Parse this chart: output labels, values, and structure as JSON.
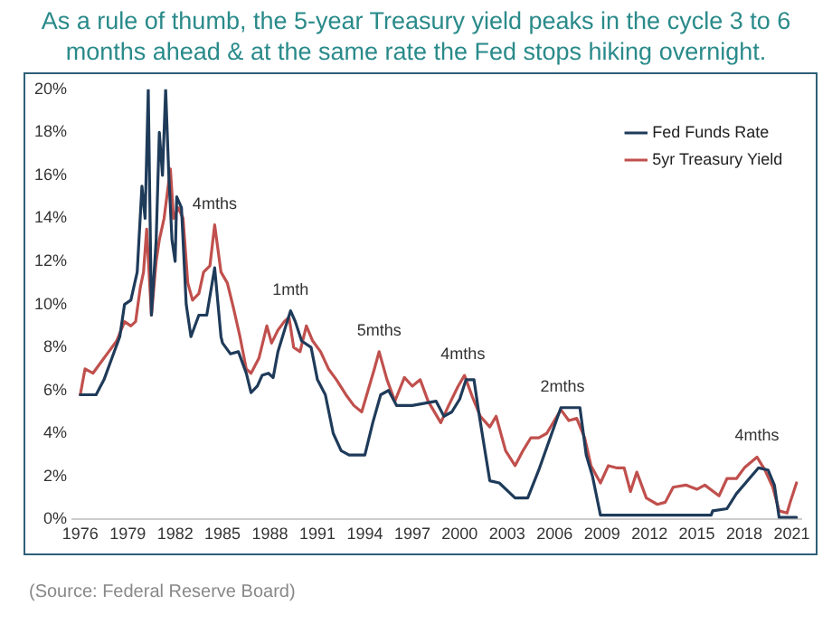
{
  "chart_data": {
    "type": "line",
    "title": "As a rule of thumb, the 5-year Treasury yield peaks in the cycle 3 to 6 months ahead & at the same rate the Fed stops hiking overnight.",
    "xlim": [
      1975.5,
      2021.6
    ],
    "xticks": [
      1976,
      1979,
      1982,
      1985,
      1988,
      1991,
      1994,
      1997,
      2000,
      2003,
      2006,
      2009,
      2012,
      2015,
      2018,
      2021
    ],
    "ylim": [
      0,
      20
    ],
    "yticks": [
      {
        "value": 0,
        "label": "0%"
      },
      {
        "value": 2,
        "label": "2%"
      },
      {
        "value": 4,
        "label": "4%"
      },
      {
        "value": 6,
        "label": "6%"
      },
      {
        "value": 8,
        "label": "8%"
      },
      {
        "value": 10,
        "label": "10%"
      },
      {
        "value": 12,
        "label": "12%"
      },
      {
        "value": 14,
        "label": "14%"
      },
      {
        "value": 16,
        "label": "16%"
      },
      {
        "value": 18,
        "label": "18%"
      },
      {
        "value": 20,
        "label": "20%"
      }
    ],
    "grid": false,
    "legend": "top right",
    "marker": "none",
    "series": [
      {
        "name": "Fed Funds Rate",
        "color": "#1f3b5a",
        "x": [
          1976,
          1977,
          1977.5,
          1978,
          1978.5,
          1978.8,
          1979.2,
          1979.6,
          1979.9,
          1980.1,
          1980.3,
          1980.5,
          1980.8,
          1981,
          1981.2,
          1981.4,
          1981.6,
          1981.8,
          1982,
          1982.1,
          1982.4,
          1982.7,
          1983,
          1983.5,
          1984,
          1984.5,
          1984.9,
          1985,
          1985.5,
          1986,
          1986.5,
          1986.8,
          1987.2,
          1987.5,
          1987.9,
          1988.2,
          1988.5,
          1989,
          1989.3,
          1989.6,
          1990,
          1990.6,
          1991,
          1991.5,
          1992,
          1992.5,
          1993,
          1994,
          1994.5,
          1995,
          1995.5,
          1996,
          1997,
          1998.5,
          1999,
          1999.5,
          2000,
          2000.4,
          2000.9,
          2001.2,
          2001.9,
          2002.5,
          2003.5,
          2004.3,
          2005,
          2006.4,
          2007.6,
          2008,
          2008.4,
          2008.9,
          2015.9,
          2016,
          2016.9,
          2017.5,
          2018.9,
          2019.5,
          2019.9,
          2020.2,
          2021.3
        ],
        "values": [
          5.8,
          5.8,
          6.5,
          7.5,
          8.5,
          10,
          10.2,
          11.5,
          15.5,
          14,
          20,
          9.5,
          13,
          18,
          16,
          20,
          16,
          13,
          12,
          15,
          14.5,
          10,
          8.5,
          9.5,
          9.5,
          11.7,
          8.5,
          8.2,
          7.7,
          7.8,
          6.8,
          5.9,
          6.2,
          6.7,
          6.8,
          6.6,
          7.8,
          9,
          9.7,
          9.2,
          8.3,
          8,
          6.5,
          5.8,
          4,
          3.2,
          3,
          3,
          4.5,
          5.8,
          6,
          5.3,
          5.3,
          5.5,
          4.8,
          5,
          5.6,
          6.5,
          6.5,
          5,
          1.8,
          1.7,
          1,
          1,
          2.3,
          5.2,
          5.2,
          3,
          2,
          0.2,
          0.2,
          0.4,
          0.5,
          1.2,
          2.4,
          2.3,
          1.6,
          0.1,
          0.1
        ]
      },
      {
        "name": "5yr Treasury Yield",
        "color": "#c0504d",
        "x": [
          1976,
          1976.3,
          1976.8,
          1977.3,
          1977.8,
          1978.3,
          1978.8,
          1979.2,
          1979.5,
          1979.8,
          1980,
          1980.2,
          1980.5,
          1980.8,
          1981,
          1981.3,
          1981.7,
          1981.9,
          1982.2,
          1982.5,
          1982.8,
          1983.1,
          1983.5,
          1983.8,
          1984.2,
          1984.5,
          1984.9,
          1985.3,
          1985.7,
          1986.1,
          1986.5,
          1986.8,
          1987.3,
          1987.8,
          1988.1,
          1988.5,
          1988.9,
          1989.2,
          1989.5,
          1989.9,
          1990.3,
          1990.7,
          1991.2,
          1991.7,
          1992.2,
          1992.8,
          1993.3,
          1993.8,
          1994.2,
          1994.6,
          1994.9,
          1995.4,
          1995.9,
          1996.5,
          1997,
          1997.5,
          1998,
          1998.8,
          1999.3,
          1999.9,
          2000.3,
          2000.8,
          2001.3,
          2001.9,
          2002.3,
          2002.9,
          2003.5,
          2004,
          2004.5,
          2005,
          2005.5,
          2006.4,
          2006.9,
          2007.4,
          2007.9,
          2008.3,
          2008.9,
          2009.4,
          2009.9,
          2010.4,
          2010.8,
          2011.2,
          2011.8,
          2012.5,
          2013,
          2013.5,
          2014.3,
          2015,
          2015.5,
          2016.4,
          2016.9,
          2017.5,
          2018,
          2018.8,
          2019.3,
          2019.8,
          2020.2,
          2020.7,
          2020.9,
          2021.3
        ],
        "values": [
          5.8,
          7,
          6.8,
          7.3,
          7.8,
          8.3,
          9.2,
          9,
          9.2,
          10.8,
          11.5,
          13.5,
          9.5,
          12,
          13,
          14,
          16.3,
          14,
          14.5,
          14,
          11,
          10.2,
          10.5,
          11.5,
          11.8,
          13.7,
          11.5,
          11,
          9.8,
          8.5,
          7,
          6.8,
          7.5,
          9,
          8.2,
          8.8,
          9.2,
          9.4,
          8,
          7.8,
          9,
          8.3,
          7.8,
          7,
          6.5,
          5.8,
          5.3,
          5,
          6,
          7,
          7.8,
          6.5,
          5.5,
          6.6,
          6.2,
          6.5,
          5.5,
          4.5,
          5.3,
          6.2,
          6.7,
          5.7,
          4.8,
          4.3,
          4.8,
          3.2,
          2.5,
          3.2,
          3.8,
          3.8,
          4,
          5.1,
          4.6,
          4.7,
          3.8,
          2.5,
          1.7,
          2.5,
          2.4,
          2.4,
          1.3,
          2.2,
          1,
          0.7,
          0.8,
          1.5,
          1.6,
          1.4,
          1.6,
          1.1,
          1.9,
          1.9,
          2.4,
          2.9,
          2.3,
          1.5,
          0.4,
          0.3,
          0.8,
          1.7
        ]
      }
    ],
    "annotations": [
      {
        "text": "4mths",
        "x": 1984.5,
        "y": 13.7
      },
      {
        "text": "1mth",
        "x": 1989.3,
        "y": 9.7
      },
      {
        "text": "5mths",
        "x": 1994.9,
        "y": 7.8
      },
      {
        "text": "4mths",
        "x": 2000.2,
        "y": 6.7
      },
      {
        "text": "2mths",
        "x": 2006.5,
        "y": 5.2
      },
      {
        "text": "4mths",
        "x": 2018.8,
        "y": 2.9
      },
      "(Source: Federal Reserve Board)"
    ]
  }
}
